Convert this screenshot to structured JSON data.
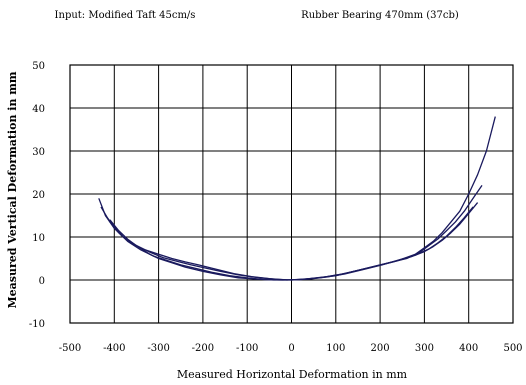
{
  "chart_data": {
    "type": "line",
    "title_left": "Input: Modified Taft 45cm/s",
    "title_right": "Rubber Bearing 470mm (37cb)",
    "xlabel": "Measured Horizontal Deformation in mm",
    "ylabel": "Measured Vertical Deformation in mm",
    "xlim": [
      -500,
      500
    ],
    "ylim": [
      -10,
      50
    ],
    "xticks": [
      -500,
      -400,
      -300,
      -200,
      -100,
      0,
      100,
      200,
      300,
      400,
      500
    ],
    "yticks": [
      -10,
      0,
      10,
      20,
      30,
      40,
      50
    ],
    "xtick_labels": [
      "-500",
      "-400",
      "-300",
      "-200",
      "-100",
      "0",
      "100",
      "200",
      "300",
      "400",
      "500"
    ],
    "ytick_labels": [
      "-10",
      "0",
      "10",
      "20",
      "30",
      "40",
      "50"
    ],
    "grid": true,
    "line_color": "#1a1a5e",
    "series": [
      {
        "x": [
          -435,
          -420,
          -400,
          -380,
          -350,
          -320,
          -300,
          -270,
          -240,
          -200,
          -160,
          -120,
          -80,
          -40,
          0,
          40,
          80,
          120,
          160,
          200,
          240,
          280,
          300,
          320,
          340,
          360,
          380,
          400,
          420,
          440,
          460
        ],
        "y": [
          19,
          15,
          12.5,
          10,
          8,
          6,
          5,
          4,
          3,
          2,
          1.2,
          0.5,
          0.2,
          0,
          0,
          0.3,
          0.8,
          1.5,
          2.5,
          3.5,
          4.5,
          6,
          7.5,
          9,
          11,
          13.5,
          16,
          20,
          24.5,
          30,
          38
        ]
      },
      {
        "x": [
          -430,
          -410,
          -390,
          -370,
          -340,
          -310,
          -280,
          -250,
          -220,
          -180,
          -140,
          -100,
          -60,
          -20,
          20,
          60,
          100,
          140,
          180,
          220,
          260,
          290,
          310,
          330,
          350,
          370,
          390,
          410,
          430
        ],
        "y": [
          17,
          13.5,
          11,
          9,
          7,
          5.5,
          4.5,
          3.5,
          2.8,
          1.8,
          1,
          0.5,
          0.1,
          0,
          0.1,
          0.5,
          1,
          2,
          3,
          4,
          5,
          6.5,
          8,
          9.5,
          11.5,
          13.5,
          16,
          19,
          22
        ]
      },
      {
        "x": [
          -420,
          -400,
          -380,
          -360,
          -330,
          -300,
          -270,
          -240,
          -210,
          -170,
          -130,
          -90,
          -50,
          -10,
          30,
          70,
          110,
          150,
          190,
          230,
          270,
          300,
          320,
          340,
          360,
          380,
          400,
          420
        ],
        "y": [
          15,
          12,
          10,
          8.5,
          7,
          6,
          5,
          4.2,
          3.5,
          2.5,
          1.5,
          0.8,
          0.3,
          0,
          0.2,
          0.6,
          1.3,
          2.2,
          3.2,
          4.2,
          5.4,
          6.6,
          7.8,
          9.2,
          11,
          13,
          15.5,
          18
        ]
      },
      {
        "x": [
          -410,
          -390,
          -370,
          -350,
          -320,
          -290,
          -260,
          -230,
          -200,
          -160,
          -120,
          -80,
          -40,
          0,
          40,
          80,
          120,
          160,
          200,
          240,
          280,
          310,
          330,
          350,
          370,
          390,
          410
        ],
        "y": [
          14,
          11.5,
          9.5,
          8,
          6.5,
          5.2,
          4.4,
          3.6,
          2.9,
          2,
          1.2,
          0.6,
          0.2,
          0,
          0.2,
          0.7,
          1.4,
          2.4,
          3.4,
          4.6,
          5.8,
          7.2,
          8.6,
          10.2,
          12.2,
          14.5,
          17
        ]
      }
    ]
  }
}
